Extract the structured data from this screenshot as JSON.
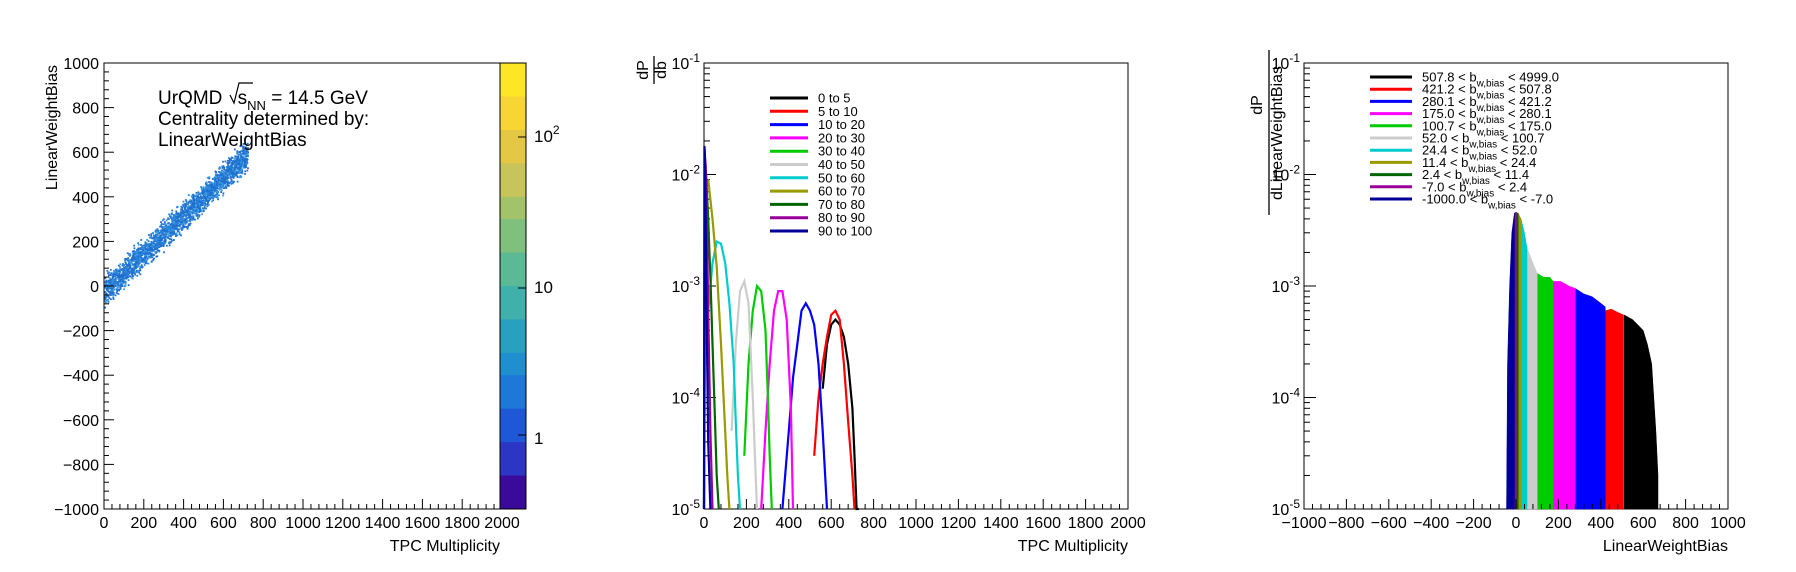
{
  "chart_data": [
    {
      "type": "heatmap",
      "xlabel": "TPC Multiplicity",
      "ylabel": "LinearWeightBias",
      "xlim": [
        0,
        2000
      ],
      "ylim": [
        -1000,
        1000
      ],
      "xticks": [
        "0",
        "200",
        "400",
        "600",
        "800",
        "1000",
        "1200",
        "1400",
        "1600",
        "1800",
        "2000"
      ],
      "yticks": [
        "1000",
        "800",
        "600",
        "400",
        "200",
        "0",
        "−200",
        "−400",
        "−600",
        "−800",
        "−1000"
      ],
      "colorbar": {
        "scale": "log",
        "range": [
          0.3,
          600
        ],
        "labels": [
          "1",
          "10",
          "10^2"
        ]
      },
      "annotation": {
        "line1_prefix": "UrQMD",
        "sqrt_label": "s",
        "sqrt_sub": "NN",
        "line1_suffix": " = 14.5 GeV",
        "line2": "Centrality determined by:",
        "line3": "LinearWeightBias"
      },
      "band": {
        "x_range": [
          0,
          720
        ],
        "slope": 0.85,
        "intercept": 0,
        "width": 60
      }
    },
    {
      "type": "line",
      "xlabel": "TPC Multiplicity",
      "ylabel_num": "dP",
      "ylabel_den": "db",
      "xlim": [
        0,
        2000
      ],
      "ylim": [
        1e-05,
        0.1
      ],
      "yscale": "log",
      "xticks": [
        "0",
        "200",
        "400",
        "600",
        "800",
        "1000",
        "1200",
        "1400",
        "1600",
        "1800",
        "2000"
      ],
      "yticks": [
        "10^-1",
        "10^-2",
        "10^-3",
        "10^-4",
        "10^-5"
      ],
      "series": [
        {
          "name": "0 to 5",
          "color": "#000000",
          "x": [
            560,
            580,
            600,
            620,
            640,
            660,
            680,
            700,
            710,
            720,
            730
          ],
          "y": [
            0.00012,
            0.0003,
            0.00045,
            0.0005,
            0.00045,
            0.00035,
            0.0002,
            8e-05,
            3e-05,
            1e-05,
            1e-05
          ]
        },
        {
          "name": "5 to 10",
          "color": "#ff0000",
          "x": [
            520,
            540,
            560,
            580,
            600,
            620,
            640,
            660,
            680,
            700,
            710
          ],
          "y": [
            3e-05,
            0.0001,
            0.0002,
            0.00035,
            0.00055,
            0.0006,
            0.0005,
            0.0002,
            6e-05,
            2e-05,
            1e-05
          ]
        },
        {
          "name": "10 to 20",
          "color": "#0000ff",
          "x": [
            370,
            400,
            420,
            440,
            460,
            480,
            500,
            520,
            540,
            560,
            580
          ],
          "y": [
            1e-05,
            5e-05,
            0.00015,
            0.0003,
            0.0006,
            0.0007,
            0.0006,
            0.00045,
            0.0002,
            5e-05,
            1e-05
          ]
        },
        {
          "name": "20 to 30",
          "color": "#ff00ff",
          "x": [
            270,
            290,
            310,
            330,
            350,
            370,
            390,
            410,
            420
          ],
          "y": [
            1e-05,
            5e-05,
            0.0002,
            0.0006,
            0.0009,
            0.0009,
            0.0005,
            8e-05,
            1e-05
          ]
        },
        {
          "name": "30 to 40",
          "color": "#00cc00",
          "x": [
            190,
            210,
            230,
            250,
            270,
            290,
            300,
            310,
            320
          ],
          "y": [
            3e-05,
            0.0002,
            0.0006,
            0.001,
            0.0009,
            0.0004,
            0.00012,
            3e-05,
            1e-05
          ]
        },
        {
          "name": "40 to 50",
          "color": "#cccccc",
          "x": [
            130,
            150,
            170,
            190,
            210,
            230,
            240,
            250
          ],
          "y": [
            5e-05,
            0.0003,
            0.0009,
            0.0011,
            0.0007,
            0.0001,
            3e-05,
            1e-05
          ]
        },
        {
          "name": "50 to 60",
          "color": "#00cccc",
          "x": [
            20,
            40,
            60,
            80,
            100,
            120,
            140,
            150,
            160,
            170
          ],
          "y": [
            0.0006,
            0.0016,
            0.0025,
            0.0024,
            0.0016,
            0.0007,
            0.0002,
            6e-05,
            2e-05,
            1e-05
          ]
        },
        {
          "name": "60 to 70",
          "color": "#999900",
          "x": [
            0,
            10,
            20,
            40,
            60,
            80,
            100,
            110,
            120
          ],
          "y": [
            1e-05,
            0.008,
            0.009,
            0.004,
            0.0015,
            0.0003,
            5e-05,
            2e-05,
            1e-05
          ]
        },
        {
          "name": "70 to 80",
          "color": "#006600",
          "x": [
            0,
            5,
            10,
            20,
            30,
            40,
            50,
            60,
            70
          ],
          "y": [
            1e-05,
            0.012,
            0.01,
            0.004,
            0.0012,
            0.0003,
            8e-05,
            2e-05,
            1e-05
          ]
        },
        {
          "name": "80 to 90",
          "color": "#990099",
          "x": [
            0,
            4,
            8,
            12,
            16,
            20,
            30,
            40
          ],
          "y": [
            1e-05,
            0.015,
            0.012,
            0.006,
            0.002,
            0.0006,
            5e-05,
            1e-05
          ]
        },
        {
          "name": "90 to 100",
          "color": "#000099",
          "x": [
            0,
            2,
            4,
            6,
            8,
            10,
            14,
            20,
            30
          ],
          "y": [
            1e-05,
            0.018,
            0.016,
            0.01,
            0.004,
            0.0015,
            0.0003,
            4e-05,
            1e-05
          ]
        }
      ]
    },
    {
      "type": "bar",
      "xlabel": "LinearWeightBias",
      "ylabel": "dP / dLinearWeightBias",
      "ylabel_num": "dP",
      "ylabel_den": "dLinearWeightBias",
      "xlim": [
        -1000,
        1000
      ],
      "ylim": [
        1e-05,
        0.1
      ],
      "yscale": "log",
      "xticks": [
        "−1000",
        "−800",
        "−600",
        "−400",
        "−200",
        "0",
        "200",
        "400",
        "600",
        "800",
        "1000"
      ],
      "yticks": [
        "10^-1",
        "10^-2",
        "10^-3",
        "10^-4",
        "10^-5"
      ],
      "legend_sub": "w,bias",
      "series": [
        {
          "lo": "507.8",
          "hi": "4999.0",
          "color": "#000000",
          "x": [
            510,
            550,
            600,
            620,
            640,
            650,
            660,
            670
          ],
          "y": [
            0.00055,
            0.0005,
            0.0004,
            0.0003,
            0.0002,
            0.0001,
            5e-05,
            2e-05
          ]
        },
        {
          "lo": "421.2",
          "hi": "507.8",
          "color": "#ff0000",
          "x": [
            421,
            450,
            480,
            507
          ],
          "y": [
            0.0006,
            0.00062,
            0.00058,
            0.00055
          ]
        },
        {
          "lo": "280.1",
          "hi": "421.2",
          "color": "#0000ff",
          "x": [
            280,
            320,
            360,
            400,
            421
          ],
          "y": [
            0.00095,
            0.00085,
            0.0008,
            0.0007,
            0.00065
          ]
        },
        {
          "lo": "175.0",
          "hi": "280.1",
          "color": "#ff00ff",
          "x": [
            175,
            210,
            250,
            280
          ],
          "y": [
            0.0011,
            0.0011,
            0.001,
            0.00095
          ]
        },
        {
          "lo": "100.7",
          "hi": "175.0",
          "color": "#00cc00",
          "x": [
            100,
            130,
            160,
            175
          ],
          "y": [
            0.0013,
            0.0012,
            0.0012,
            0.0011
          ]
        },
        {
          "lo": "52.0",
          "hi": "100.7",
          "color": "#cccccc",
          "x": [
            52,
            75,
            100
          ],
          "y": [
            0.0022,
            0.0017,
            0.0013
          ]
        },
        {
          "lo": "24.4",
          "hi": "52.0",
          "color": "#00cccc",
          "x": [
            24,
            40,
            52
          ],
          "y": [
            0.004,
            0.003,
            0.0022
          ]
        },
        {
          "lo": "11.4",
          "hi": "24.4",
          "color": "#999900",
          "x": [
            11,
            18,
            24
          ],
          "y": [
            0.0045,
            0.0042,
            0.004
          ]
        },
        {
          "lo": "2.4",
          "hi": "11.4",
          "color": "#006600",
          "x": [
            2,
            7,
            11
          ],
          "y": [
            0.0046,
            0.0045,
            0.0045
          ]
        },
        {
          "lo": "-7.0",
          "hi": "2.4",
          "color": "#990099",
          "x": [
            -7,
            -2,
            2
          ],
          "y": [
            0.0045,
            0.0046,
            0.0046
          ]
        },
        {
          "lo": "-1000.0",
          "hi": "-7.0",
          "color": "#000099",
          "x": [
            -45,
            -40,
            -30,
            -20,
            -10,
            -7
          ],
          "y": [
            1e-05,
            0.0002,
            0.001,
            0.003,
            0.0042,
            0.0045
          ]
        }
      ]
    }
  ]
}
